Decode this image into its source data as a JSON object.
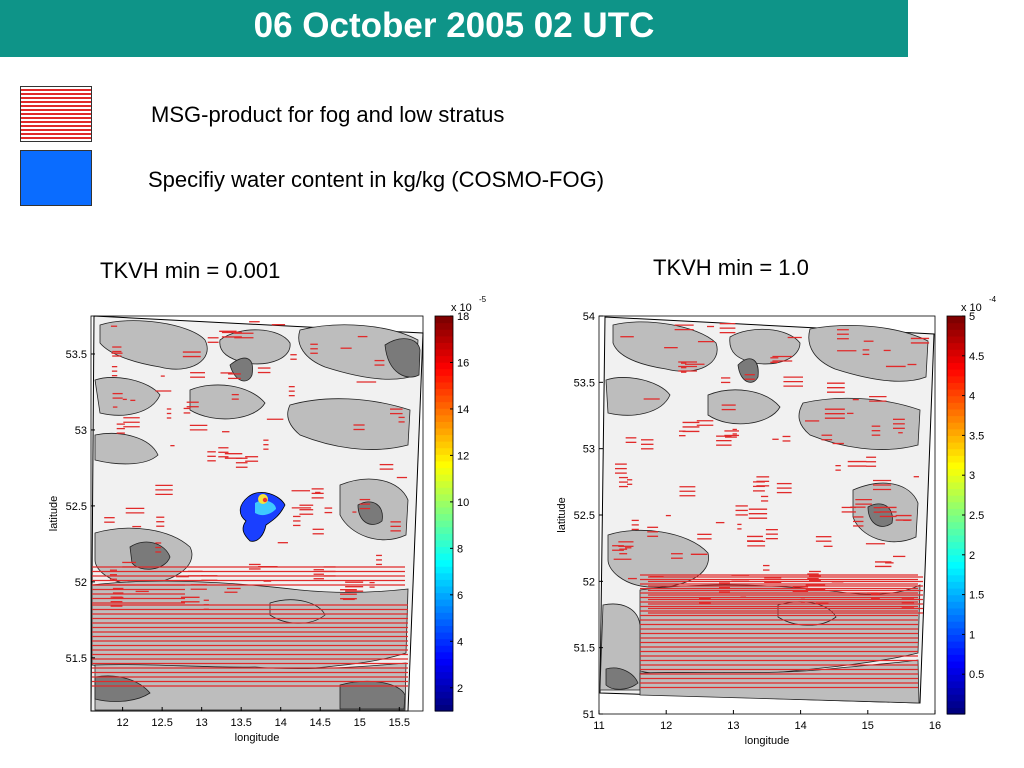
{
  "header": {
    "title": "06 October 2005 02 UTC",
    "color": "#0e9488"
  },
  "legend": [
    {
      "label": "MSG-product for fog and low stratus",
      "swatch": "red-hatched",
      "color": "#e12a2a"
    },
    {
      "label": "Specifiy water content in kg/kg (COSMO-FOG)",
      "swatch": "solid-blue",
      "color": "#0a6cff"
    }
  ],
  "chart_data": [
    {
      "type": "heatmap",
      "title": "TKVH min = 0.001",
      "xlabel": "longitude",
      "ylabel": "latitude",
      "xlim": [
        11.6,
        15.8
      ],
      "ylim": [
        51.15,
        53.75
      ],
      "xticks": [
        "12",
        "12.5",
        "13",
        "13.5",
        "14",
        "14.5",
        "15",
        "15.5"
      ],
      "yticks": [
        "51.5",
        "52",
        "52.5",
        "53",
        "53.5"
      ],
      "colorbar": {
        "exponent_label": "x 10",
        "exponent": "-5",
        "ticks": [
          "2",
          "4",
          "6",
          "8",
          "10",
          "12",
          "14",
          "16",
          "18"
        ],
        "min": 1,
        "max": 18
      },
      "grid": false
    },
    {
      "type": "heatmap",
      "title": "TKVH min = 1.0",
      "xlabel": "longitude",
      "ylabel": "latitude",
      "xlim": [
        11,
        16
      ],
      "ylim": [
        51,
        54
      ],
      "xticks": [
        "11",
        "12",
        "13",
        "14",
        "15",
        "16"
      ],
      "yticks": [
        "51",
        "51.5",
        "52",
        "52.5",
        "53",
        "53.5",
        "54"
      ],
      "colorbar": {
        "exponent_label": "x 10",
        "exponent": "-4",
        "ticks": [
          "0.5",
          "1",
          "1.5",
          "2",
          "2.5",
          "3",
          "3.5",
          "4",
          "4.5",
          "5"
        ],
        "min": 0,
        "max": 5
      },
      "grid": false
    }
  ]
}
